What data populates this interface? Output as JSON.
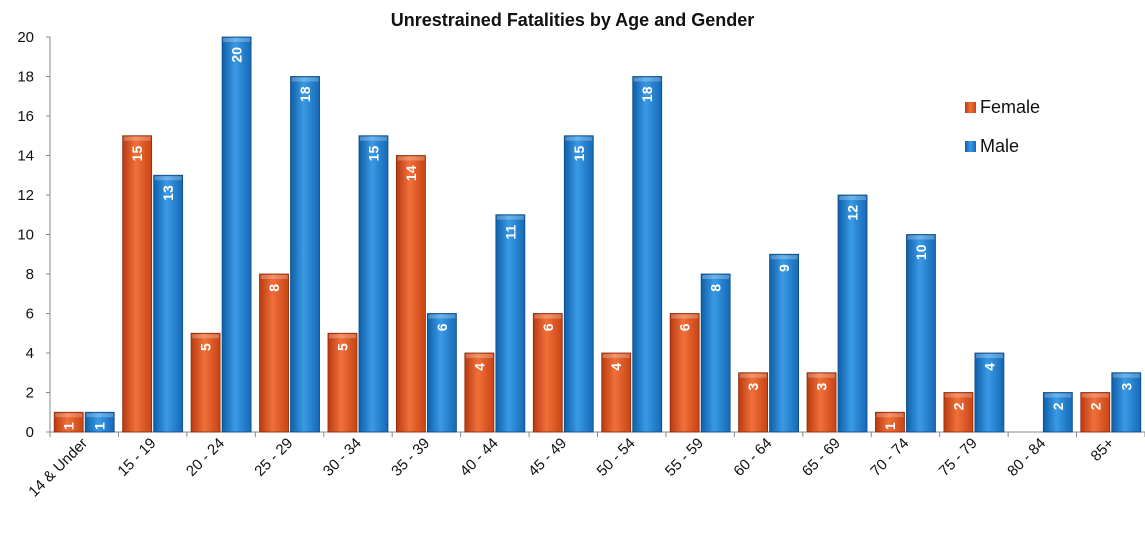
{
  "chart_data": {
    "type": "bar",
    "title": "Unrestrained Fatalities by Age and Gender",
    "xlabel": "",
    "ylabel": "",
    "ylim": [
      0,
      20
    ],
    "yticks": [
      0,
      2,
      4,
      6,
      8,
      10,
      12,
      14,
      16,
      18,
      20
    ],
    "grid": false,
    "legend_position": "right",
    "categories": [
      "14 & Under",
      "15 - 19",
      "20 - 24",
      "25 - 29",
      "30 - 34",
      "35 - 39",
      "40 - 44",
      "45 - 49",
      "50 - 54",
      "55 - 59",
      "60 - 64",
      "65 - 69",
      "70 - 74",
      "75 - 79",
      "80 - 84",
      "85+"
    ],
    "series": [
      {
        "name": "Female",
        "color": "#e0561e",
        "values": [
          1,
          15,
          5,
          8,
          5,
          14,
          4,
          6,
          4,
          6,
          3,
          3,
          1,
          2,
          0,
          2
        ]
      },
      {
        "name": "Male",
        "color": "#1a7fd1",
        "values": [
          1,
          13,
          20,
          18,
          15,
          6,
          11,
          15,
          18,
          8,
          9,
          12,
          10,
          4,
          2,
          3
        ]
      }
    ]
  }
}
